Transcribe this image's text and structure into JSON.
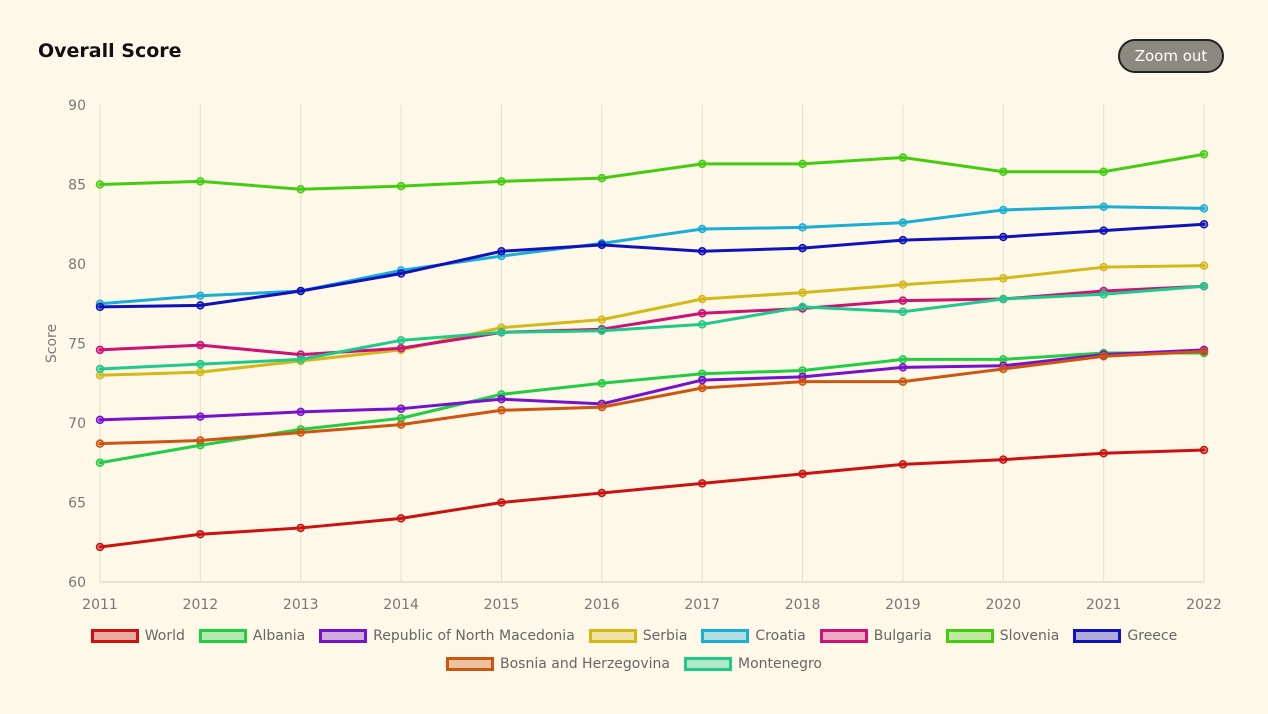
{
  "header": {
    "title": "Overall Score",
    "zoom_out_label": "Zoom out"
  },
  "chart_data": {
    "type": "line",
    "title": "Overall Score",
    "xlabel": "",
    "ylabel": "Score",
    "x": [
      "2011",
      "2012",
      "2013",
      "2014",
      "2015",
      "2016",
      "2017",
      "2018",
      "2019",
      "2020",
      "2021",
      "2022"
    ],
    "ylim": [
      60,
      90
    ],
    "yticks": [
      60,
      65,
      70,
      75,
      80,
      85,
      90
    ],
    "grid": "vertical",
    "legend_position": "bottom",
    "series": [
      {
        "name": "World",
        "color": "#cc1111",
        "values": [
          62.2,
          63.0,
          63.4,
          64.0,
          65.0,
          65.6,
          66.2,
          66.8,
          67.4,
          67.7,
          68.1,
          68.3
        ]
      },
      {
        "name": "Albania",
        "color": "#22cc44",
        "values": [
          67.5,
          68.6,
          69.6,
          70.3,
          71.8,
          72.5,
          73.1,
          73.3,
          74.0,
          74.0,
          74.4,
          74.4
        ]
      },
      {
        "name": "Republic of North Macedonia",
        "color": "#7711cc",
        "values": [
          70.2,
          70.4,
          70.7,
          70.9,
          71.5,
          71.2,
          72.7,
          72.9,
          73.5,
          73.6,
          74.3,
          74.6
        ]
      },
      {
        "name": "Serbia",
        "color": "#d4b81a",
        "values": [
          73.0,
          73.2,
          73.9,
          74.6,
          76.0,
          76.5,
          77.8,
          78.2,
          78.7,
          79.1,
          79.8,
          79.9
        ]
      },
      {
        "name": "Croatia",
        "color": "#1aaed4",
        "values": [
          77.5,
          78.0,
          78.3,
          79.6,
          80.5,
          81.3,
          82.2,
          82.3,
          82.6,
          83.4,
          83.6,
          83.5
        ]
      },
      {
        "name": "Bulgaria",
        "color": "#cc1177",
        "values": [
          74.6,
          74.9,
          74.3,
          74.7,
          75.7,
          75.9,
          76.9,
          77.2,
          77.7,
          77.8,
          78.3,
          78.6
        ]
      },
      {
        "name": "Slovenia",
        "color": "#44cc11",
        "values": [
          85.0,
          85.2,
          84.7,
          84.9,
          85.2,
          85.4,
          86.3,
          86.3,
          86.7,
          85.8,
          85.8,
          86.9
        ]
      },
      {
        "name": "Greece",
        "color": "#1111bb",
        "values": [
          77.3,
          77.4,
          78.3,
          79.4,
          80.8,
          81.2,
          80.8,
          81.0,
          81.5,
          81.7,
          82.1,
          82.5
        ]
      },
      {
        "name": "Bosnia and Herzegovina",
        "color": "#cc5511",
        "values": [
          68.7,
          68.9,
          69.4,
          69.9,
          70.8,
          71.0,
          72.2,
          72.6,
          72.6,
          73.4,
          74.2,
          74.5
        ]
      },
      {
        "name": "Montenegro",
        "color": "#1fc98a",
        "values": [
          73.4,
          73.7,
          74.0,
          75.2,
          75.7,
          75.8,
          76.2,
          77.3,
          77.0,
          77.8,
          78.1,
          78.6
        ]
      }
    ]
  }
}
